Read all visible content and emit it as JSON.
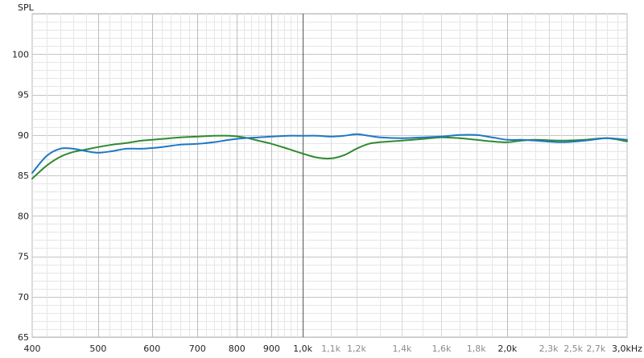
{
  "chart_data": {
    "type": "line",
    "title": "",
    "xlabel": "",
    "ylabel": "SPL",
    "x_scale": "log",
    "xlim": [
      400,
      3000
    ],
    "ylim": [
      65,
      105
    ],
    "grid": true,
    "y_ticks": [
      65,
      70,
      75,
      80,
      85,
      90,
      95,
      100
    ],
    "y_tick_labels": [
      "65",
      "70",
      "75",
      "80",
      "85",
      "90",
      "95",
      "100"
    ],
    "x_ticks": [
      {
        "value": 400,
        "label": "400",
        "style": "major"
      },
      {
        "value": 500,
        "label": "500",
        "style": "major"
      },
      {
        "value": 600,
        "label": "600",
        "style": "major"
      },
      {
        "value": 700,
        "label": "700",
        "style": "major"
      },
      {
        "value": 800,
        "label": "800",
        "style": "major"
      },
      {
        "value": 900,
        "label": "900",
        "style": "major"
      },
      {
        "value": 1000,
        "label": "1,0k",
        "style": "major"
      },
      {
        "value": 1100,
        "label": "1,1k",
        "style": "minor"
      },
      {
        "value": 1200,
        "label": "1,2k",
        "style": "minor"
      },
      {
        "value": 1400,
        "label": "1,4k",
        "style": "minor"
      },
      {
        "value": 1600,
        "label": "1,6k",
        "style": "minor"
      },
      {
        "value": 1800,
        "label": "1,8k",
        "style": "minor"
      },
      {
        "value": 2000,
        "label": "2,0k",
        "style": "major"
      },
      {
        "value": 2300,
        "label": "2,3k",
        "style": "minor"
      },
      {
        "value": 2500,
        "label": "2,5k",
        "style": "minor"
      },
      {
        "value": 2700,
        "label": "2,7k",
        "style": "minor"
      },
      {
        "value": 3000,
        "label": "3,0kHz",
        "style": "major"
      }
    ],
    "series": [
      {
        "color": "#1f77c4",
        "x": [
          400,
          420,
          440,
          460,
          480,
          500,
          525,
          550,
          580,
          620,
          660,
          700,
          740,
          780,
          820,
          860,
          900,
          950,
          1000,
          1050,
          1100,
          1150,
          1200,
          1250,
          1300,
          1400,
          1500,
          1600,
          1700,
          1800,
          1900,
          2000,
          2100,
          2200,
          2400,
          2600,
          2800,
          3000
        ],
        "y": [
          85.3,
          87.4,
          88.3,
          88.3,
          88.0,
          87.8,
          88.0,
          88.3,
          88.3,
          88.5,
          88.8,
          88.9,
          89.1,
          89.4,
          89.6,
          89.7,
          89.8,
          89.9,
          89.9,
          89.9,
          89.8,
          89.9,
          90.1,
          89.9,
          89.7,
          89.6,
          89.7,
          89.8,
          90.0,
          90.0,
          89.7,
          89.4,
          89.4,
          89.3,
          89.1,
          89.3,
          89.6,
          89.4
        ]
      },
      {
        "color": "#2e8b2e",
        "x": [
          400,
          420,
          440,
          460,
          480,
          500,
          525,
          550,
          580,
          620,
          660,
          700,
          740,
          780,
          820,
          860,
          900,
          950,
          1000,
          1050,
          1100,
          1150,
          1200,
          1250,
          1300,
          1400,
          1500,
          1600,
          1700,
          1800,
          1900,
          2000,
          2100,
          2200,
          2400,
          2600,
          2800,
          3000
        ],
        "y": [
          84.6,
          86.2,
          87.3,
          87.9,
          88.2,
          88.5,
          88.8,
          89.0,
          89.3,
          89.5,
          89.7,
          89.8,
          89.9,
          89.9,
          89.7,
          89.3,
          88.9,
          88.3,
          87.7,
          87.2,
          87.1,
          87.5,
          88.3,
          88.9,
          89.1,
          89.3,
          89.5,
          89.7,
          89.6,
          89.4,
          89.2,
          89.1,
          89.3,
          89.4,
          89.3,
          89.4,
          89.6,
          89.2
        ]
      }
    ]
  }
}
